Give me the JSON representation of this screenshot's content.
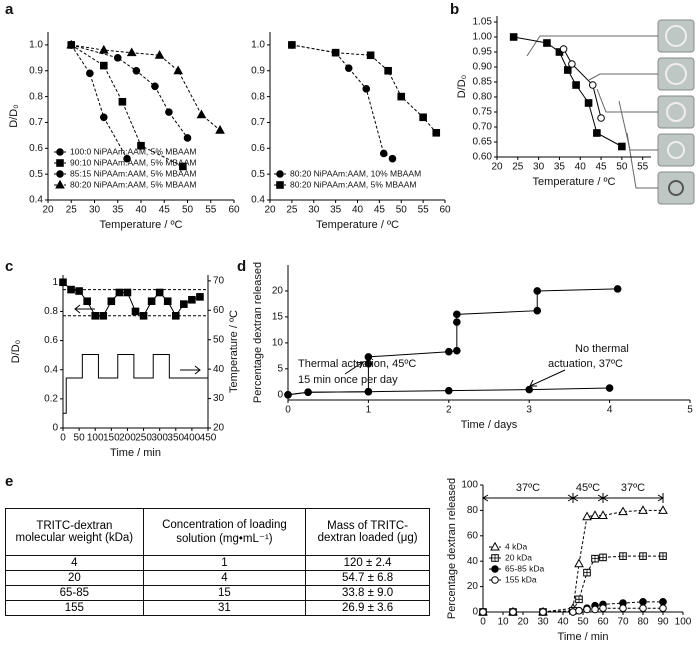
{
  "panel_labels": [
    "a",
    "b",
    "c",
    "d",
    "e"
  ],
  "chart_data": [
    {
      "type": "line",
      "xlabel": "Temperature / ºC",
      "ylabel": "D/D₀",
      "xlim": [
        20,
        60
      ],
      "ylim": [
        0.4,
        1.05
      ],
      "xticks": [
        20,
        25,
        30,
        35,
        40,
        45,
        50,
        55,
        60
      ],
      "yticks": [
        0.4,
        0.5,
        0.6,
        0.7,
        0.8,
        0.9,
        {
          "value": 1.0,
          "label": "1.0"
        }
      ],
      "line_style": "dashed",
      "legend": "lower left",
      "series": [
        {
          "name": "100:0 NiPAAm:AAM, 5% MBAAM",
          "color": "#000000",
          "marker": "circle",
          "x": [
            25,
            29,
            32,
            37
          ],
          "values": [
            1.0,
            0.89,
            0.72,
            0.56
          ]
        },
        {
          "name": "90:10 NiPAAm:AAM, 5% MBAAM",
          "color": "#000000",
          "marker": "square",
          "x": [
            25,
            32,
            36,
            40,
            49
          ],
          "values": [
            1.0,
            0.92,
            0.78,
            0.61,
            0.53
          ]
        },
        {
          "name": "85:15 NiPAAm:AAM, 5% MBAAM",
          "color": "#000000",
          "marker": "circle",
          "x": [
            25,
            35,
            39,
            43,
            46,
            50
          ],
          "values": [
            1.0,
            0.95,
            0.9,
            0.84,
            0.74,
            0.64
          ]
        },
        {
          "name": "80:20 NiPAAm:AAM, 5% MBAAM",
          "color": "#000000",
          "marker": "triangle",
          "x": [
            25,
            32,
            38,
            44,
            48,
            53,
            57
          ],
          "values": [
            1.0,
            0.98,
            0.97,
            0.96,
            0.9,
            0.73,
            0.67
          ]
        }
      ]
    },
    {
      "type": "line",
      "xlabel": "Temperature / ºC",
      "xlim": [
        20,
        60
      ],
      "ylim": [
        0.4,
        1.05
      ],
      "xticks": [
        20,
        25,
        30,
        35,
        40,
        45,
        50,
        55,
        60
      ],
      "yticks": [
        0.4,
        0.5,
        0.6,
        0.7,
        0.8,
        0.9,
        {
          "value": 1.0,
          "label": "1.0"
        }
      ],
      "line_style": "dashed",
      "legend": "lower left",
      "series": [
        {
          "name": "80:20 NiPAAm:AAM, 10% MBAAM",
          "color": "#000000",
          "marker": "circle",
          "x": [
            25,
            35,
            38,
            42,
            46,
            48
          ],
          "values": [
            1.0,
            0.97,
            0.91,
            0.83,
            0.58,
            0.56
          ]
        },
        {
          "name": "80:20 NiPAAm:AAM, 5% MBAAM",
          "color": "#000000",
          "marker": "square",
          "x": [
            25,
            35,
            43,
            47,
            50,
            55,
            58
          ],
          "values": [
            1.0,
            0.97,
            0.96,
            0.9,
            0.8,
            0.72,
            0.66
          ]
        }
      ]
    },
    {
      "type": "line",
      "xlabel": "Temperature / ºC",
      "ylabel": "D/D₀",
      "xlim": [
        20,
        57
      ],
      "ylim": [
        0.6,
        1.07
      ],
      "xticks": [
        20,
        25,
        30,
        35,
        40,
        45,
        50,
        55
      ],
      "yticks": [
        {
          "value": 0.6,
          "label": "0.60"
        },
        0.65,
        {
          "value": 0.7,
          "label": "0.70"
        },
        0.75,
        {
          "value": 0.8,
          "label": "0.80"
        },
        0.85,
        {
          "value": 0.9,
          "label": "0.90"
        },
        0.95,
        {
          "value": 1.0,
          "label": "1.00"
        },
        1.05
      ],
      "series": [
        {
          "color": "#000000",
          "marker": "square",
          "x": [
            24,
            32,
            35,
            37,
            39,
            42,
            44,
            50
          ],
          "values": [
            1.0,
            0.98,
            0.95,
            0.89,
            0.84,
            0.78,
            0.68,
            0.635
          ]
        },
        {
          "color": "#000000",
          "marker": "open-circle",
          "x": [
            36,
            38,
            43,
            45
          ],
          "values": [
            0.96,
            0.91,
            0.84,
            0.73
          ]
        }
      ]
    },
    {
      "type": "line",
      "xlabel": "Time / min",
      "ylabel": "D/D₀",
      "y2label": "Temperature / ºC",
      "xlim": [
        0,
        450
      ],
      "ylim": [
        0,
        1.05
      ],
      "y2lim": [
        20,
        72
      ],
      "xticks": [
        0,
        50,
        100,
        150,
        200,
        250,
        300,
        350,
        400,
        450
      ],
      "yticks": [
        0,
        0.2,
        0.4,
        0.6,
        0.8,
        1
      ],
      "y2ticks": [
        20,
        30,
        40,
        50,
        60,
        70
      ],
      "hlines": [
        0.95,
        0.77
      ],
      "series": [
        {
          "color": "#000000",
          "marker": "square",
          "x": [
            0,
            25,
            50,
            75,
            100,
            125,
            150,
            175,
            200,
            225,
            250,
            275,
            300,
            325,
            350,
            375,
            400,
            425
          ],
          "values": [
            1.0,
            0.95,
            0.94,
            0.87,
            0.77,
            0.77,
            0.87,
            0.93,
            0.93,
            0.8,
            0.77,
            0.87,
            0.93,
            0.87,
            0.77,
            0.85,
            0.88,
            0.9
          ]
        },
        {
          "color": "#000000",
          "axis": "y2",
          "x": [
            0,
            10,
            10,
            60,
            60,
            110,
            110,
            170,
            170,
            220,
            220,
            280,
            280,
            330,
            330,
            450
          ],
          "values": [
            25,
            25,
            37,
            37,
            45,
            45,
            37,
            37,
            45,
            45,
            37,
            37,
            45,
            45,
            37,
            37
          ]
        }
      ]
    },
    {
      "type": "line",
      "xlabel": "Time / days",
      "ylabel": "Percentage dextran released",
      "xlim": [
        0,
        5
      ],
      "ylim": [
        -1,
        25
      ],
      "xticks": [
        0,
        1,
        2,
        3,
        4,
        5
      ],
      "yticks": [
        0,
        5,
        10,
        15,
        20
      ],
      "annotations": [
        "Thermal actuation, 45ºC",
        "15 min once per day",
        "No thermal",
        "actuation, 37ºC"
      ],
      "series": [
        {
          "color": "#000000",
          "marker": "circle",
          "x": [
            0,
            0.25,
            1,
            1,
            1,
            2,
            2.1,
            2.1,
            2.1,
            3.1,
            3.1,
            4.1
          ],
          "values": [
            0,
            0.5,
            0.6,
            6.0,
            7.3,
            8.3,
            8.5,
            14,
            15.5,
            16.2,
            20,
            20.4
          ]
        },
        {
          "color": "#000000",
          "marker": "circle",
          "x": [
            0,
            0.25,
            1,
            2,
            3,
            4
          ],
          "values": [
            0,
            0.5,
            0.6,
            0.8,
            1.0,
            1.3
          ]
        }
      ]
    },
    {
      "type": "line",
      "xlabel": "Time / min",
      "ylabel": "Percentage dextran released",
      "xlim": [
        0,
        100
      ],
      "ylim": [
        0,
        100
      ],
      "xticks": [
        0,
        10,
        20,
        30,
        40,
        50,
        60,
        70,
        80,
        90,
        100
      ],
      "yticks": [
        0,
        20,
        40,
        60,
        80,
        100
      ],
      "line_style": "dashed",
      "legend": "upper left",
      "regions": [
        {
          "label": "37ºC",
          "from": 0,
          "to": 45
        },
        {
          "label": "45ºC",
          "from": 45,
          "to": 60
        },
        {
          "label": "37ºC",
          "from": 60,
          "to": 90
        }
      ],
      "x": [
        0,
        15,
        30,
        45,
        48,
        52,
        56,
        60,
        70,
        80,
        90
      ],
      "series": [
        {
          "name": "4 kDa",
          "color": "#000000",
          "marker": "open-triangle",
          "values": [
            0,
            0,
            0,
            3,
            38,
            75,
            76,
            76,
            79,
            80,
            80
          ]
        },
        {
          "name": "20 kDa",
          "color": "#000000",
          "marker": "boxplus",
          "values": [
            0,
            0,
            0,
            1,
            10,
            31,
            42,
            43,
            44,
            44,
            44
          ]
        },
        {
          "name": "65-85 kDa",
          "color": "#000000",
          "marker": "circle",
          "values": [
            0,
            0,
            0,
            0,
            1,
            3,
            5,
            6,
            7,
            8,
            8
          ]
        },
        {
          "name": "155 kDa",
          "color": "#000000",
          "marker": "open-circle",
          "values": [
            0,
            0,
            0,
            0,
            1,
            2,
            2,
            3,
            3,
            3,
            3
          ]
        }
      ]
    }
  ],
  "table": {
    "header": [
      "TRITC-dextran molecular weight (kDa)",
      "Concentration of loading solution (mg•mL⁻¹)",
      "Mass of TRITC-dextran loaded (μg)"
    ],
    "rows": [
      [
        "4",
        "1",
        "120 ± 2.4"
      ],
      [
        "20",
        "4",
        "54.7 ± 6.8"
      ],
      [
        "65-85",
        "15",
        "33.8 ± 9.0"
      ],
      [
        "155",
        "31",
        "26.9 ± 3.6"
      ]
    ]
  }
}
